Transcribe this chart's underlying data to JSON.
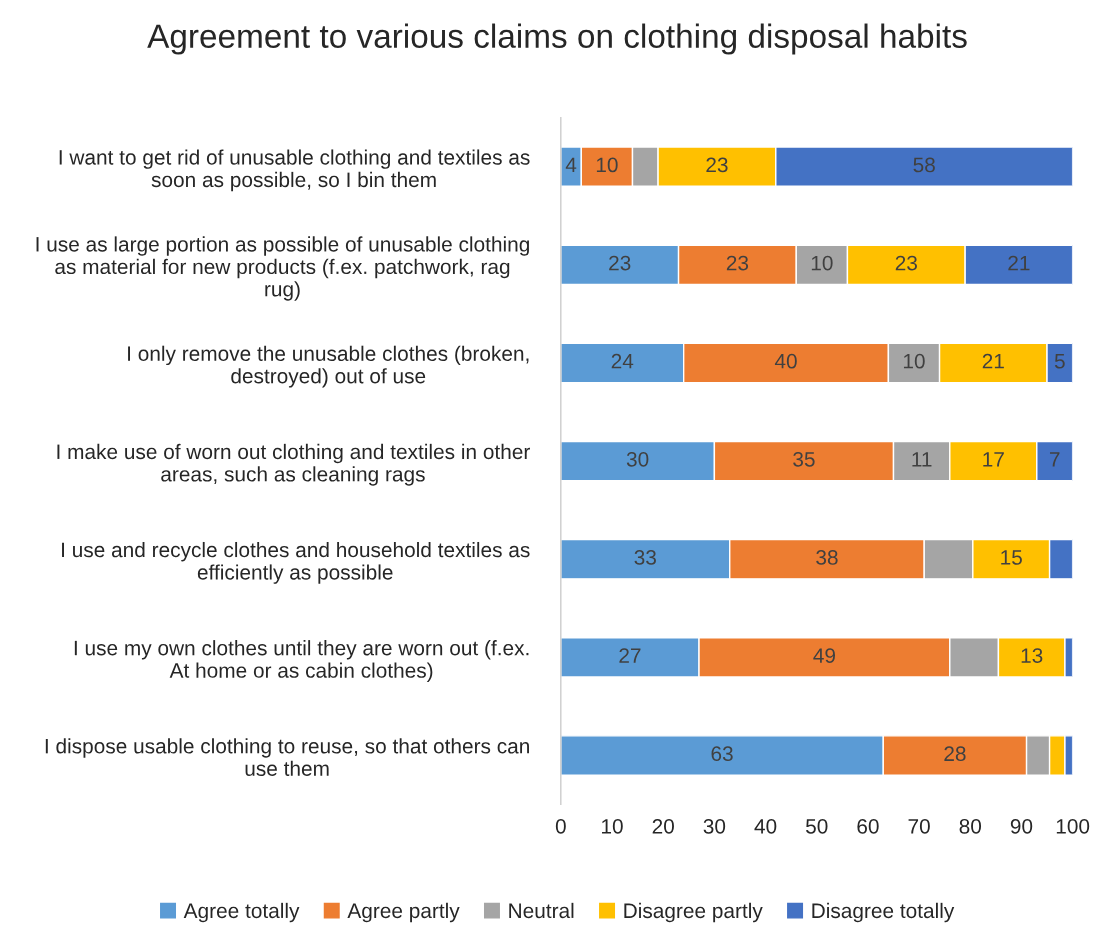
{
  "chart_data": {
    "type": "bar",
    "orientation": "horizontal",
    "stacked": true,
    "title": "Agreement to various claims on clothing disposal habits",
    "categories": [
      "I want to get rid of unusable clothing and textiles as\nsoon as possible, so I bin them",
      "I use as large portion as possible of unusable clothing\nas material for new products (f.ex. patchwork, rag\nrug)",
      "I only remove the unusable clothes (broken,\ndestroyed) out of use",
      "I make use of worn out clothing and textiles in other\nareas, such as cleaning rags",
      "I use and recycle clothes and household textiles as\nefficiently as possible",
      "I use my own clothes until they are worn out (f.ex.\nAt home or as cabin clothes)",
      "I dispose usable clothing to reuse, so that others can\nuse them"
    ],
    "series": [
      {
        "name": "Agree totally",
        "color": "#5b9bd5",
        "values": [
          4,
          23,
          24,
          30,
          33,
          27,
          63
        ],
        "value_labels": [
          "4",
          "23",
          "24",
          "30",
          "33",
          "27",
          "63"
        ]
      },
      {
        "name": "Agree partly",
        "color": "#ed7d31",
        "values": [
          10,
          23,
          40,
          35,
          38,
          49,
          28
        ],
        "value_labels": [
          "10",
          "23",
          "40",
          "35",
          "38",
          "49",
          "28"
        ]
      },
      {
        "name": "Neutral",
        "color": "#a5a5a5",
        "values": [
          5,
          10,
          10,
          11,
          9.5,
          9.5,
          4.5
        ],
        "value_labels": [
          null,
          "10",
          "10",
          "11",
          null,
          null,
          null
        ]
      },
      {
        "name": "Disagree partly",
        "color": "#ffc000",
        "values": [
          23,
          23,
          21,
          17,
          15,
          13,
          3
        ],
        "value_labels": [
          "23",
          "23",
          "21",
          "17",
          "15",
          "13",
          null
        ]
      },
      {
        "name": "Disagree totally",
        "color": "#4472c4",
        "values": [
          58,
          21,
          5,
          7,
          4.5,
          1.5,
          1.5
        ],
        "value_labels": [
          "58",
          "21",
          "5",
          "7",
          null,
          null,
          null
        ]
      }
    ],
    "xlim": [
      0,
      100
    ],
    "xticks": [
      0,
      10,
      20,
      30,
      40,
      50,
      60,
      70,
      80,
      90,
      100
    ],
    "grid": false,
    "legend": "bottom"
  }
}
